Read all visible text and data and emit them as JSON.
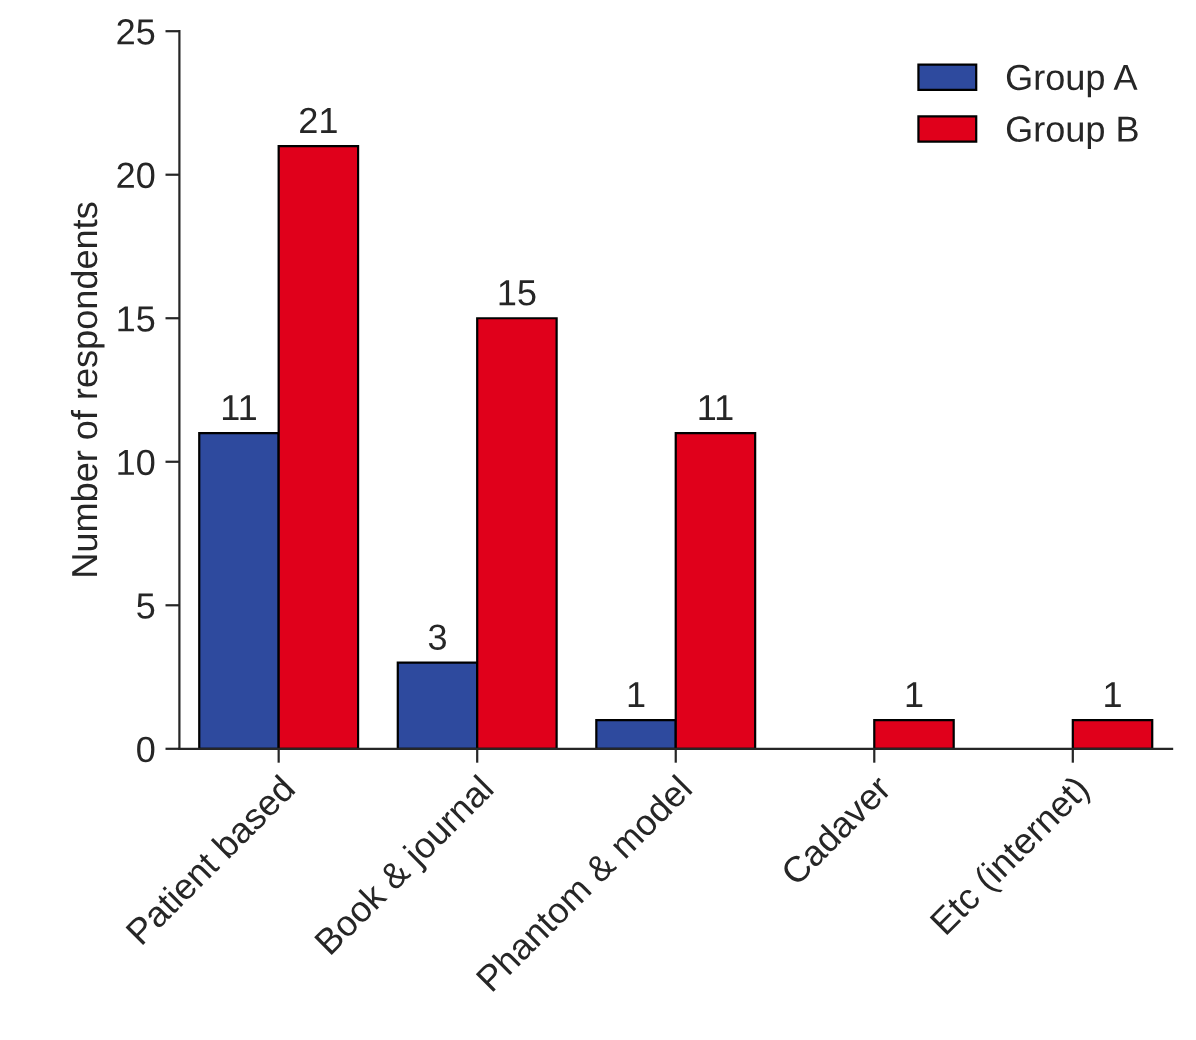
{
  "chart_data": {
    "type": "bar",
    "ylabel": "Number of respondents",
    "categories": [
      "Patient based",
      "Book & journal",
      "Phantom & model",
      "Cadaver",
      "Etc (internet)"
    ],
    "series": [
      {
        "name": "Group A",
        "color": "#2e4a9e",
        "values": [
          11,
          3,
          1,
          null,
          null
        ]
      },
      {
        "name": "Group B",
        "color": "#e0001b",
        "values": [
          21,
          15,
          11,
          1,
          1
        ]
      }
    ],
    "ylim": [
      0,
      25
    ],
    "yticks": [
      0,
      5,
      10,
      15,
      20,
      25
    ],
    "data_labels": true,
    "legend": "top right",
    "grid": false
  }
}
